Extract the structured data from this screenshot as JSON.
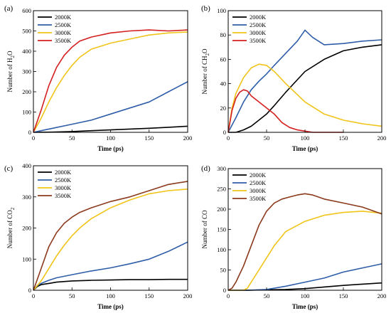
{
  "chart_data": [
    {
      "panel_label": "(a)",
      "type": "line",
      "xlabel": "Time (ps)",
      "ylabel_parts": [
        "Number of H",
        "2",
        "O"
      ],
      "xlim": [
        0,
        200
      ],
      "ylim": [
        0,
        600
      ],
      "xticks": [
        0,
        50,
        100,
        150,
        200
      ],
      "yticks": [
        0,
        100,
        200,
        300,
        400,
        500,
        600
      ],
      "legend_position": "top-left",
      "series": [
        {
          "name": "2000K",
          "color": "#000000",
          "x": [
            0,
            25,
            50,
            75,
            100,
            125,
            150,
            175,
            200
          ],
          "y": [
            0,
            1,
            4,
            8,
            12,
            16,
            20,
            25,
            30
          ]
        },
        {
          "name": "2500K",
          "color": "#2f5da8",
          "x": [
            0,
            10,
            25,
            50,
            75,
            100,
            125,
            150,
            175,
            200
          ],
          "y": [
            0,
            8,
            20,
            40,
            60,
            90,
            120,
            150,
            200,
            250
          ]
        },
        {
          "name": "3000K",
          "color": "#f0c419",
          "x": [
            0,
            10,
            20,
            30,
            40,
            50,
            60,
            75,
            100,
            125,
            150,
            175,
            200
          ],
          "y": [
            0,
            70,
            150,
            220,
            280,
            330,
            370,
            410,
            440,
            460,
            480,
            490,
            495
          ]
        },
        {
          "name": "3500K",
          "color": "#d42020",
          "x": [
            0,
            10,
            20,
            30,
            40,
            50,
            60,
            75,
            100,
            125,
            150,
            175,
            200
          ],
          "y": [
            0,
            110,
            230,
            320,
            380,
            420,
            450,
            470,
            490,
            500,
            505,
            500,
            505
          ]
        }
      ]
    },
    {
      "panel_label": "(b)",
      "type": "line",
      "xlabel": "Time (ps)",
      "ylabel_parts": [
        "Number of CH",
        "2",
        "O"
      ],
      "xlim": [
        0,
        200
      ],
      "ylim": [
        0,
        100
      ],
      "xticks": [
        0,
        50,
        100,
        150,
        200
      ],
      "yticks": [
        0,
        20,
        40,
        60,
        80,
        100
      ],
      "legend_position": "top-left",
      "series": [
        {
          "name": "2000K",
          "color": "#000000",
          "x": [
            0,
            10,
            20,
            30,
            40,
            50,
            60,
            75,
            100,
            125,
            150,
            175,
            200
          ],
          "y": [
            0,
            0,
            2,
            5,
            10,
            15,
            22,
            33,
            50,
            60,
            67,
            70,
            72
          ]
        },
        {
          "name": "2500K",
          "color": "#2f5da8",
          "x": [
            0,
            10,
            20,
            30,
            40,
            50,
            60,
            75,
            90,
            100,
            110,
            125,
            150,
            175,
            200
          ],
          "y": [
            0,
            12,
            25,
            35,
            42,
            48,
            55,
            65,
            75,
            84,
            78,
            72,
            73,
            75,
            76
          ]
        },
        {
          "name": "3000K",
          "color": "#f0c419",
          "x": [
            0,
            5,
            10,
            20,
            30,
            40,
            50,
            60,
            75,
            100,
            125,
            150,
            175,
            200
          ],
          "y": [
            0,
            20,
            32,
            45,
            53,
            56,
            55,
            50,
            40,
            25,
            15,
            10,
            7,
            5
          ]
        },
        {
          "name": "3500K",
          "color": "#d42020",
          "x": [
            0,
            5,
            10,
            15,
            20,
            25,
            30,
            40,
            50,
            60,
            70,
            80,
            90,
            100,
            110,
            125,
            150
          ],
          "y": [
            0,
            18,
            28,
            33,
            35,
            34,
            30,
            25,
            20,
            15,
            8,
            4,
            2,
            1,
            0,
            0,
            0
          ]
        }
      ]
    },
    {
      "panel_label": "(c)",
      "type": "line",
      "xlabel": "Time (ps)",
      "ylabel_parts": [
        "Number of CO",
        "2",
        ""
      ],
      "xlim": [
        0,
        200
      ],
      "ylim": [
        0,
        400
      ],
      "xticks": [
        0,
        50,
        100,
        150,
        200
      ],
      "yticks": [
        0,
        100,
        200,
        300,
        400
      ],
      "legend_position": "top-left",
      "series": [
        {
          "name": "2000K",
          "color": "#000000",
          "x": [
            0,
            5,
            10,
            20,
            30,
            50,
            75,
            100,
            125,
            150,
            175,
            200
          ],
          "y": [
            0,
            12,
            18,
            22,
            26,
            30,
            32,
            33,
            34,
            34,
            35,
            35
          ]
        },
        {
          "name": "2500K",
          "color": "#2f5da8",
          "x": [
            0,
            5,
            10,
            20,
            30,
            50,
            75,
            100,
            125,
            150,
            175,
            200
          ],
          "y": [
            0,
            15,
            22,
            32,
            40,
            50,
            62,
            72,
            85,
            100,
            125,
            155
          ]
        },
        {
          "name": "3000K",
          "color": "#f0c419",
          "x": [
            0,
            10,
            20,
            30,
            40,
            50,
            60,
            75,
            100,
            125,
            150,
            175,
            200
          ],
          "y": [
            0,
            30,
            70,
            110,
            145,
            175,
            200,
            230,
            265,
            290,
            310,
            320,
            325
          ]
        },
        {
          "name": "3500K",
          "color": "#8b3a1c",
          "x": [
            0,
            10,
            20,
            30,
            40,
            50,
            60,
            75,
            100,
            125,
            150,
            175,
            200
          ],
          "y": [
            0,
            70,
            140,
            185,
            215,
            235,
            250,
            265,
            285,
            300,
            320,
            340,
            350
          ]
        }
      ]
    },
    {
      "panel_label": "(d)",
      "type": "line",
      "xlabel": "Time (ps)",
      "ylabel_parts": [
        "Number of CO",
        "",
        ""
      ],
      "xlim": [
        0,
        200
      ],
      "ylim": [
        0,
        300
      ],
      "xticks": [
        0,
        50,
        100,
        150,
        200
      ],
      "yticks": [
        0,
        50,
        100,
        150,
        200,
        250,
        300
      ],
      "legend_position": "top-left",
      "series": [
        {
          "name": "2000K",
          "color": "#000000",
          "x": [
            0,
            25,
            50,
            75,
            100,
            125,
            150,
            175,
            200
          ],
          "y": [
            0,
            0,
            1,
            2,
            4,
            8,
            12,
            15,
            18
          ]
        },
        {
          "name": "2500K",
          "color": "#2f5da8",
          "x": [
            0,
            25,
            50,
            75,
            100,
            125,
            150,
            175,
            200
          ],
          "y": [
            0,
            0,
            2,
            10,
            20,
            30,
            45,
            55,
            65
          ]
        },
        {
          "name": "3000K",
          "color": "#f0c419",
          "x": [
            0,
            20,
            25,
            30,
            40,
            50,
            60,
            75,
            100,
            125,
            150,
            175,
            200
          ],
          "y": [
            0,
            0,
            5,
            20,
            50,
            80,
            110,
            145,
            170,
            185,
            192,
            195,
            190
          ]
        },
        {
          "name": "3500K",
          "color": "#8b3a1c",
          "x": [
            0,
            5,
            10,
            20,
            30,
            40,
            50,
            60,
            70,
            80,
            90,
            100,
            110,
            125,
            150,
            175,
            200
          ],
          "y": [
            0,
            5,
            20,
            60,
            110,
            160,
            195,
            215,
            225,
            230,
            235,
            238,
            235,
            225,
            215,
            205,
            188
          ]
        }
      ]
    }
  ]
}
